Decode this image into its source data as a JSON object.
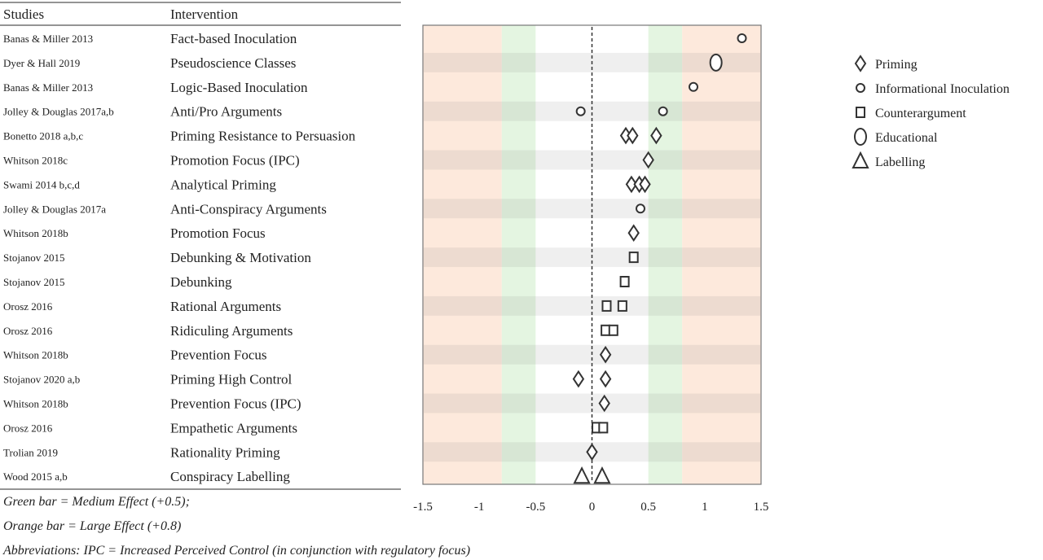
{
  "table": {
    "headers": {
      "studies": "Studies",
      "intervention": "Intervention"
    }
  },
  "chart_data": {
    "type": "scatter",
    "xlim": [
      -1.5,
      1.5
    ],
    "xticks": [
      "-1.5",
      "-1",
      "-0.5",
      "0",
      "0.5",
      "1",
      "1.5"
    ],
    "grid": false,
    "legend_position": "right",
    "reference_line": 0,
    "bands": [
      {
        "from": -1.5,
        "to": -0.8,
        "color": "#fde9dc",
        "label": "Large Effect"
      },
      {
        "from": -0.8,
        "to": -0.5,
        "color": "#e4f5e1",
        "label": "Medium Effect"
      },
      {
        "from": 0.5,
        "to": 0.8,
        "color": "#e4f5e1",
        "label": "Medium Effect"
      },
      {
        "from": 0.8,
        "to": 1.5,
        "color": "#fde9dc",
        "label": "Large Effect"
      }
    ],
    "legend": [
      {
        "name": "Priming",
        "marker": "diamond"
      },
      {
        "name": "Informational Inoculation",
        "marker": "small-circle"
      },
      {
        "name": "Counterargument",
        "marker": "square"
      },
      {
        "name": "Educational",
        "marker": "ellipse"
      },
      {
        "name": "Labelling",
        "marker": "triangle"
      }
    ],
    "rows": [
      {
        "study": "Banas & Miller 2013",
        "intervention": "Fact-based Inoculation",
        "type": "small-circle",
        "values": [
          1.33
        ]
      },
      {
        "study": "Dyer & Hall 2019",
        "intervention": "Pseudoscience Classes",
        "type": "ellipse",
        "values": [
          1.1
        ]
      },
      {
        "study": "Banas & Miller 2013",
        "intervention": "Logic-Based Inoculation",
        "type": "small-circle",
        "values": [
          0.9
        ]
      },
      {
        "study": "Jolley & Douglas 2017a,b",
        "intervention": "Anti/Pro Arguments",
        "type": "small-circle",
        "values": [
          -0.1,
          0.63
        ]
      },
      {
        "study": "Bonetto 2018 a,b,c",
        "intervention": "Priming Resistance to Persuasion",
        "type": "diamond",
        "values": [
          0.3,
          0.36,
          0.57
        ]
      },
      {
        "study": "Whitson 2018c",
        "intervention": "Promotion Focus (IPC)",
        "type": "diamond",
        "values": [
          0.5
        ]
      },
      {
        "study": "Swami 2014 b,c,d",
        "intervention": "Analytical Priming",
        "type": "diamond",
        "values": [
          0.35,
          0.42,
          0.47
        ]
      },
      {
        "study": "Jolley & Douglas 2017a",
        "intervention": "Anti-Conspiracy Arguments",
        "type": "small-circle",
        "values": [
          0.43
        ]
      },
      {
        "study": "Whitson 2018b",
        "intervention": "Promotion Focus",
        "type": "diamond",
        "values": [
          0.37
        ]
      },
      {
        "study": "Stojanov 2015",
        "intervention": "Debunking & Motivation",
        "type": "square",
        "values": [
          0.37
        ]
      },
      {
        "study": "Stojanov 2015",
        "intervention": "Debunking",
        "type": "square",
        "values": [
          0.29
        ]
      },
      {
        "study": "Orosz 2016",
        "intervention": "Rational Arguments",
        "type": "square",
        "values": [
          0.13,
          0.27
        ]
      },
      {
        "study": "Orosz 2016",
        "intervention": "Ridiculing Arguments",
        "type": "square",
        "values": [
          0.12,
          0.19
        ]
      },
      {
        "study": "Whitson 2018b",
        "intervention": "Prevention Focus",
        "type": "diamond",
        "values": [
          0.12
        ]
      },
      {
        "study": "Stojanov 2020 a,b",
        "intervention": "Priming High Control",
        "type": "diamond",
        "values": [
          -0.12,
          0.12
        ]
      },
      {
        "study": "Whitson 2018b",
        "intervention": "Prevention Focus (IPC)",
        "type": "diamond",
        "values": [
          0.11
        ]
      },
      {
        "study": "Orosz 2016",
        "intervention": "Empathetic Arguments",
        "type": "square",
        "values": [
          0.04,
          0.1
        ]
      },
      {
        "study": "Trolian 2019",
        "intervention": "Rationality Priming",
        "type": "diamond",
        "values": [
          0.0
        ]
      },
      {
        "study": "Wood 2015 a,b",
        "intervention": "Conspiracy Labelling",
        "type": "triangle",
        "values": [
          -0.09,
          0.09
        ]
      }
    ]
  },
  "notes": {
    "green": "Green bar = Medium Effect (+0.5);",
    "orange": "Orange bar = Large Effect (+0.8)",
    "abbreviations": "Abbreviations: IPC = Increased Perceived Control (in conjunction with regulatory focus)"
  }
}
